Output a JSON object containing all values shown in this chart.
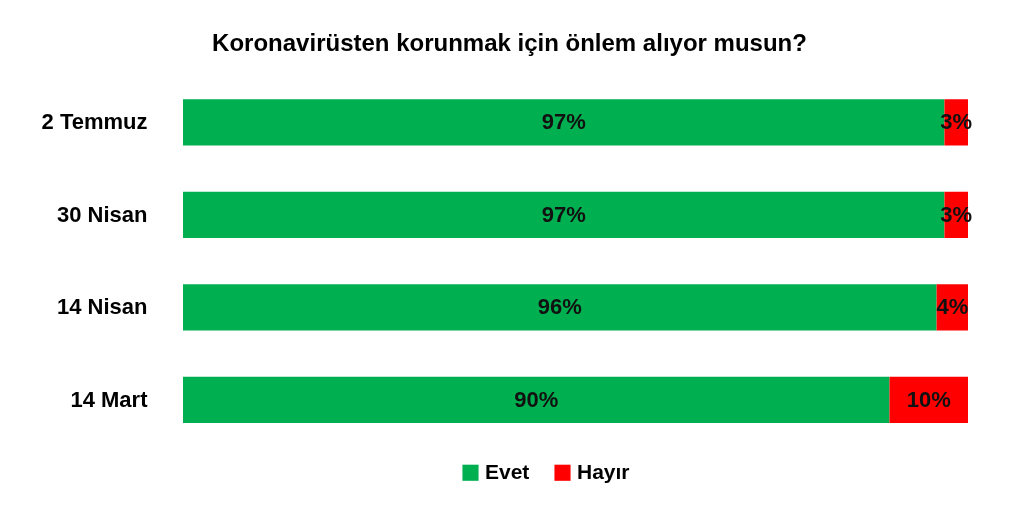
{
  "chart_data": {
    "type": "bar",
    "orientation": "horizontal",
    "stacked": true,
    "title": "Koronavirüsten korunmak için önlem alıyor musun?",
    "categories": [
      "2 Temmuz",
      "30 Nisan",
      "14 Nisan",
      "14 Mart"
    ],
    "series": [
      {
        "name": "Evet",
        "color": "#00b050",
        "values": [
          97,
          97,
          96,
          90
        ],
        "value_labels": [
          "97%",
          "97%",
          "96%",
          "90%"
        ]
      },
      {
        "name": "Hayır",
        "color": "#ff0000",
        "values": [
          3,
          3,
          4,
          10
        ],
        "value_labels": [
          "3%",
          "3%",
          "4%",
          "10%"
        ]
      }
    ],
    "legend": "bottom",
    "tick_labels": "y"
  }
}
